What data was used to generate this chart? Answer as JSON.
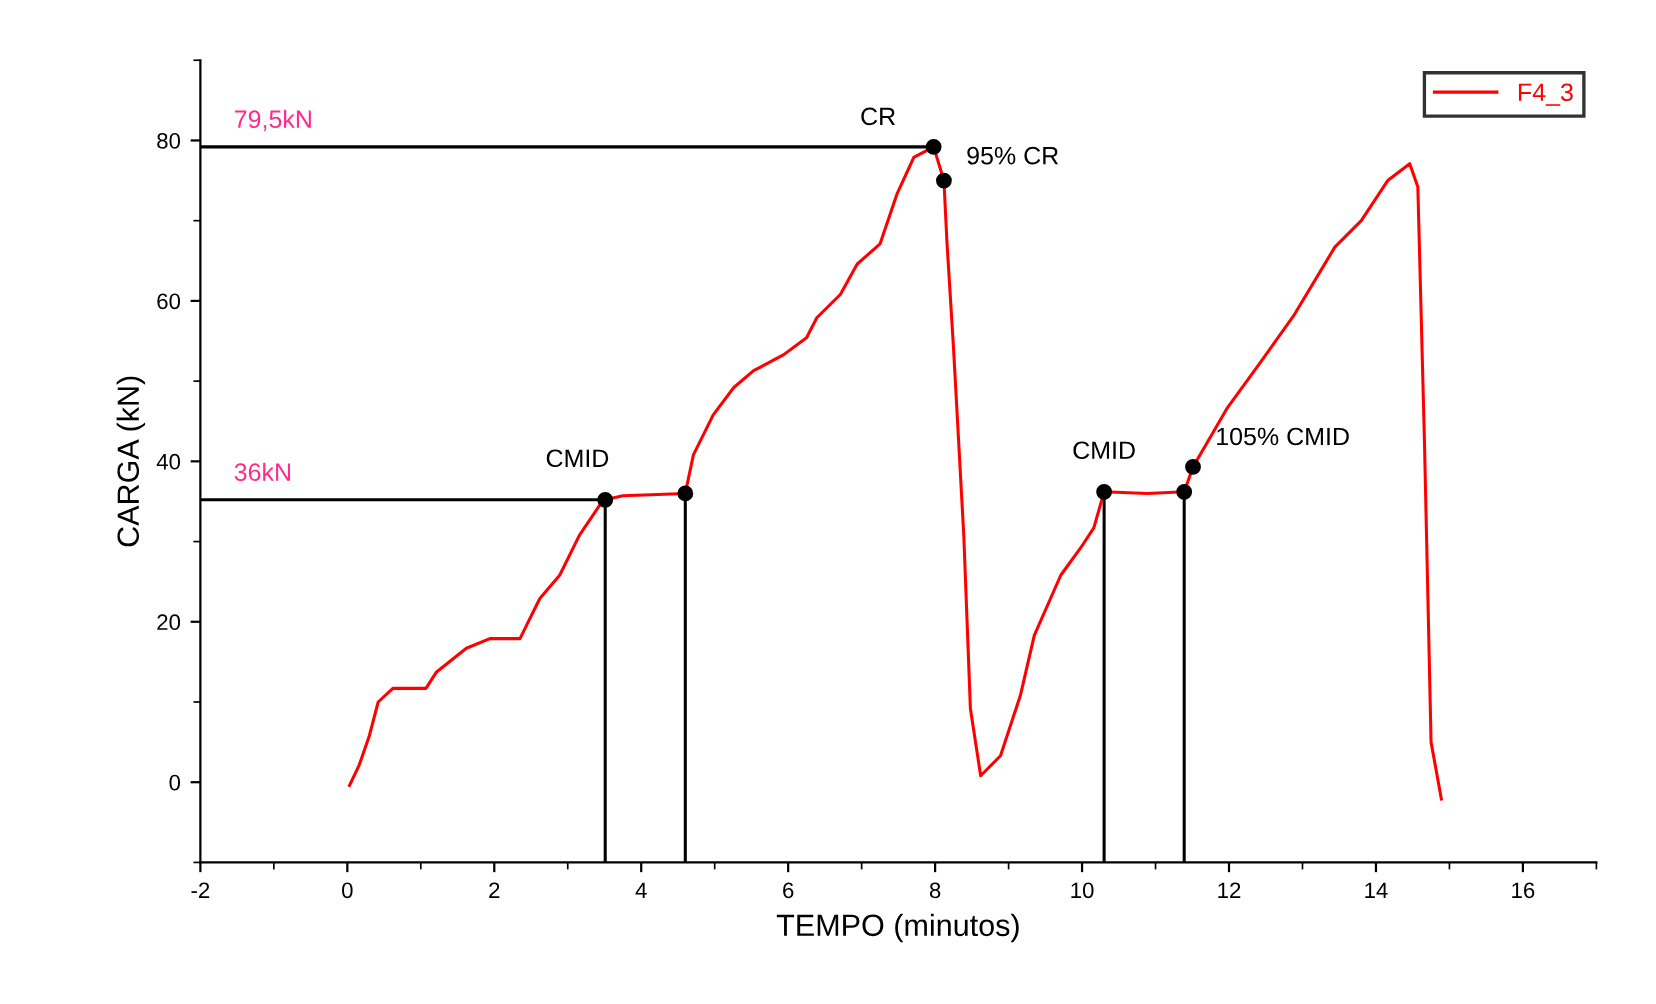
{
  "chart_data": {
    "type": "line",
    "xlabel": "TEMPO (minutos)",
    "ylabel": "CARGA (kN)",
    "xlim": [
      -2,
      17
    ],
    "xticks": [
      -2,
      0,
      2,
      4,
      6,
      8,
      10,
      12,
      14,
      16
    ],
    "ylim": [
      -10,
      90
    ],
    "yticks": [
      0,
      20,
      40,
      60,
      80
    ],
    "grid": false,
    "legend": "top right",
    "marker": "none",
    "line_style": "solid",
    "series": [
      {
        "name": "F4_3",
        "color": "#ff0000",
        "x": [
          0.03,
          0.16,
          0.3,
          0.42,
          0.62,
          1.07,
          1.21,
          1.62,
          1.94,
          2.35,
          2.62,
          2.89,
          3.16,
          3.44,
          3.51,
          3.75,
          4.6,
          4.71,
          4.98,
          5.26,
          5.53,
          5.94,
          6.25,
          6.39,
          6.71,
          6.94,
          7.25,
          7.48,
          7.71,
          7.98,
          8.12,
          8.16,
          8.25,
          8.39,
          8.48,
          8.62,
          8.89,
          9.16,
          9.35,
          9.71,
          9.98,
          10.16,
          10.3,
          10.89,
          11.39,
          11.51,
          11.98,
          12.44,
          12.89,
          13.44,
          13.8,
          14.16,
          14.46,
          14.57,
          14.66,
          14.75,
          14.89
        ],
        "values": [
          -0.4,
          2.1,
          5.8,
          10,
          11.7,
          11.7,
          13.7,
          16.7,
          17.9,
          17.9,
          22.9,
          25.8,
          30.8,
          34.6,
          35.2,
          35.7,
          36.0,
          40.8,
          45.8,
          49.2,
          51.3,
          53.3,
          55.4,
          57.9,
          60.8,
          64.6,
          67.1,
          73.3,
          77.9,
          79.2,
          75.0,
          67.5,
          54.2,
          30.8,
          9.2,
          0.8,
          3.3,
          10.8,
          18.3,
          25.8,
          29.2,
          31.7,
          36.2,
          36.0,
          36.2,
          39.3,
          46.7,
          52.5,
          58.3,
          66.7,
          70,
          75,
          77.1,
          74.2,
          42.5,
          5,
          -2.1
        ]
      },
      {
        "color": "#000000",
        "x": [
          -2,
          7.98
        ],
        "values": [
          79.2,
          79.2
        ]
      },
      {
        "color": "#000000",
        "x": [
          -2,
          3.51
        ],
        "values": [
          35.2,
          35.2
        ]
      },
      {
        "color": "#000000",
        "x": [
          3.51,
          3.51
        ],
        "values": [
          -10,
          35.2
        ]
      },
      {
        "color": "#000000",
        "x": [
          4.6,
          4.6
        ],
        "values": [
          -10,
          36.0
        ]
      },
      {
        "color": "#000000",
        "x": [
          10.3,
          10.3
        ],
        "values": [
          -10,
          36.2
        ]
      },
      {
        "color": "#000000",
        "x": [
          11.39,
          11.39
        ],
        "values": [
          -10,
          36.2
        ]
      },
      {
        "type": "scatter",
        "color": "#000000",
        "marker": "circle",
        "x": [
          7.98,
          8.12,
          3.51,
          4.6,
          10.3,
          11.39,
          11.51
        ],
        "values": [
          79.2,
          75.0,
          35.2,
          36.0,
          36.2,
          36.2,
          39.3
        ]
      }
    ],
    "annotations": [
      {
        "text": "79,5kN",
        "x": -2,
        "y": 79.2
      },
      {
        "text": "36kN",
        "x": -2,
        "y": 35.2
      },
      {
        "text": "CR",
        "x": 7.98,
        "y": 79.2
      },
      {
        "text": "95% CR",
        "x": 8.12,
        "y": 75.0
      },
      {
        "text": "CMID",
        "x": 3.51,
        "y": 35.2
      },
      {
        "text": "CMID",
        "x": 10.3,
        "y": 36.2
      },
      {
        "text": "105% CMID",
        "x": 11.51,
        "y": 39.3
      }
    ]
  }
}
